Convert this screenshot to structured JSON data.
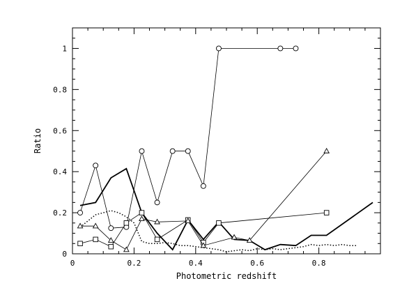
{
  "chart_data": {
    "type": "line",
    "title": "",
    "xlabel": "Photometric redshift",
    "ylabel": "Ratio",
    "xlim": [
      0,
      1
    ],
    "ylim": [
      0,
      1.1
    ],
    "xticks_major": [
      0,
      0.2,
      0.4,
      0.6,
      0.8
    ],
    "xtick_labels": [
      "0",
      "0.2",
      "0.4",
      "0.6",
      "0.8"
    ],
    "yticks_major": [
      0,
      0.2,
      0.4,
      0.6,
      0.8,
      1
    ],
    "ytick_labels": [
      "0",
      "0.2",
      "0.4",
      "0.6",
      "0.8",
      "1"
    ],
    "grid": false,
    "legend": "none",
    "series": [
      {
        "style": "thick-solid",
        "marker": "none",
        "x": [
          0.025,
          0.075,
          0.125,
          0.175,
          0.225,
          0.275,
          0.325,
          0.375,
          0.425,
          0.475,
          0.525,
          0.575,
          0.625,
          0.675,
          0.725,
          0.775,
          0.825,
          0.975
        ],
        "y": [
          0.235,
          0.25,
          0.37,
          0.415,
          0.2,
          0.1,
          0.02,
          0.165,
          0.07,
          0.155,
          0.07,
          0.065,
          0.02,
          0.045,
          0.04,
          0.09,
          0.09,
          0.25
        ]
      },
      {
        "style": "dotted",
        "marker": "none",
        "x": [
          0.025,
          0.05,
          0.075,
          0.1,
          0.125,
          0.15,
          0.175,
          0.2,
          0.225,
          0.25,
          0.275,
          0.3,
          0.325,
          0.35,
          0.375,
          0.4,
          0.425,
          0.45,
          0.475,
          0.5,
          0.525,
          0.55,
          0.575,
          0.6,
          0.625,
          0.65,
          0.675,
          0.7,
          0.725,
          0.75,
          0.775,
          0.8,
          0.825,
          0.85,
          0.875,
          0.9,
          0.925
        ],
        "y": [
          0.13,
          0.16,
          0.19,
          0.2,
          0.21,
          0.2,
          0.18,
          0.15,
          0.06,
          0.05,
          0.05,
          0.055,
          0.05,
          0.04,
          0.04,
          0.035,
          0.03,
          0.025,
          0.02,
          0.01,
          0.015,
          0.02,
          0.015,
          0.025,
          0.02,
          0.025,
          0.02,
          0.025,
          0.03,
          0.035,
          0.045,
          0.04,
          0.045,
          0.04,
          0.045,
          0.04,
          0.04
        ]
      },
      {
        "style": "thin-solid",
        "marker": "circle",
        "x": [
          0.025,
          0.075,
          0.125,
          0.175,
          0.225,
          0.275,
          0.325,
          0.375,
          0.425,
          0.475,
          0.675,
          0.725
        ],
        "y": [
          0.2,
          0.43,
          0.125,
          0.13,
          0.5,
          0.25,
          0.5,
          0.5,
          0.33,
          1.0,
          1.0,
          1.0
        ]
      },
      {
        "style": "thin-solid",
        "marker": "square",
        "x": [
          0.025,
          0.075,
          0.125,
          0.175,
          0.225,
          0.275,
          0.375,
          0.425,
          0.475,
          0.825
        ],
        "y": [
          0.05,
          0.07,
          0.035,
          0.15,
          0.2,
          0.07,
          0.165,
          0.055,
          0.15,
          0.2
        ]
      },
      {
        "style": "thin-solid",
        "marker": "triangle",
        "x": [
          0.025,
          0.075,
          0.125,
          0.175,
          0.225,
          0.275,
          0.375,
          0.425,
          0.525,
          0.575,
          0.825
        ],
        "y": [
          0.135,
          0.135,
          0.065,
          0.02,
          0.17,
          0.155,
          0.16,
          0.04,
          0.08,
          0.065,
          0.5
        ]
      }
    ]
  }
}
